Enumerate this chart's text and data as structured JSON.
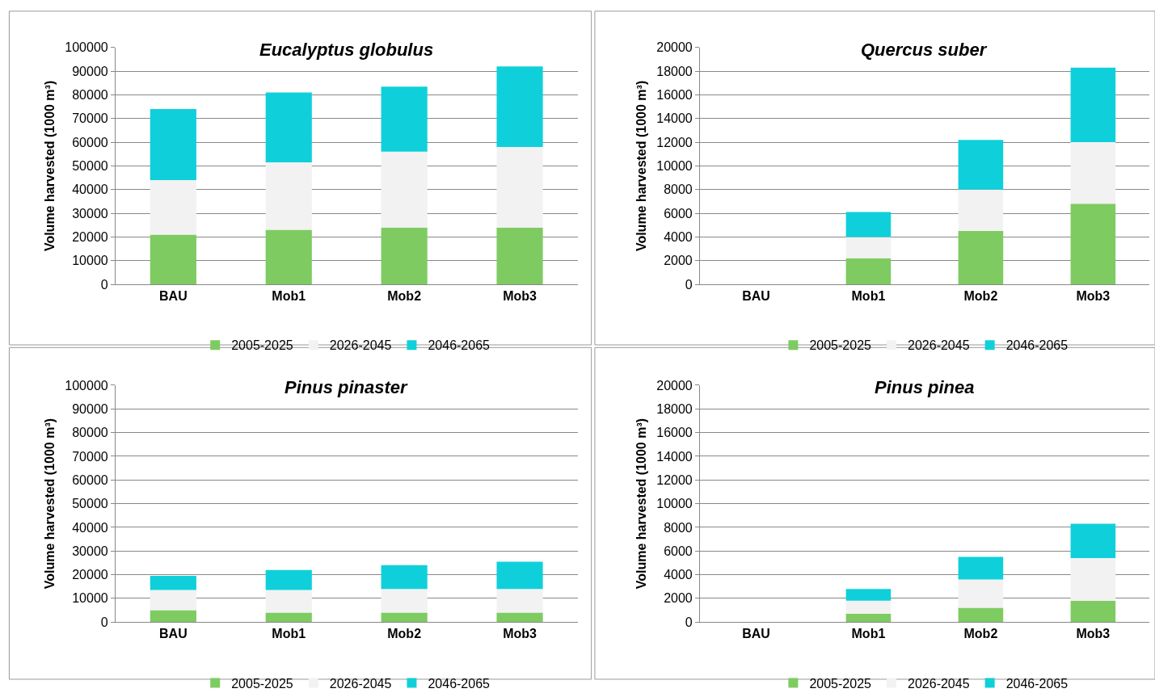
{
  "chart_data": [
    {
      "type": "bar",
      "stacked": true,
      "title": "Eucalyptus globulus",
      "ylabel": "Volume harvested (1000 m³)",
      "categories": [
        "BAU",
        "Mob1",
        "Mob2",
        "Mob3"
      ],
      "series": [
        {
          "name": "2005-2025",
          "color": "#7ecb62",
          "values": [
            21000,
            23000,
            24000,
            24000
          ]
        },
        {
          "name": "2026-2045",
          "color": "#f2f2f2",
          "values": [
            23000,
            28500,
            32000,
            34000
          ]
        },
        {
          "name": "2046-2065",
          "color": "#0fd0da",
          "values": [
            30000,
            29500,
            27500,
            34000
          ]
        }
      ],
      "ylim": [
        0,
        100000
      ],
      "yticks": [
        0,
        10000,
        20000,
        30000,
        40000,
        50000,
        60000,
        70000,
        80000,
        90000,
        100000
      ],
      "grid": "y",
      "legend": "bottom"
    },
    {
      "type": "bar",
      "stacked": true,
      "title": "Quercus suber",
      "ylabel": "Volume harvested (1000 m³)",
      "categories": [
        "BAU",
        "Mob1",
        "Mob2",
        "Mob3"
      ],
      "series": [
        {
          "name": "2005-2025",
          "color": "#7ecb62",
          "values": [
            0,
            2200,
            4500,
            6800
          ]
        },
        {
          "name": "2026-2045",
          "color": "#f2f2f2",
          "values": [
            0,
            1800,
            3500,
            5200
          ]
        },
        {
          "name": "2046-2065",
          "color": "#0fd0da",
          "values": [
            0,
            2100,
            4200,
            6300
          ]
        }
      ],
      "ylim": [
        0,
        20000
      ],
      "yticks": [
        0,
        2000,
        4000,
        6000,
        8000,
        10000,
        12000,
        14000,
        16000,
        18000,
        20000
      ],
      "grid": "y",
      "legend": "bottom"
    },
    {
      "type": "bar",
      "stacked": true,
      "title": "Pinus pinaster",
      "ylabel": "Volume harvested (1000 m³)",
      "categories": [
        "BAU",
        "Mob1",
        "Mob2",
        "Mob3"
      ],
      "series": [
        {
          "name": "2005-2025",
          "color": "#7ecb62",
          "values": [
            5000,
            4000,
            4000,
            4000
          ]
        },
        {
          "name": "2026-2045",
          "color": "#f2f2f2",
          "values": [
            8500,
            9500,
            10000,
            10000
          ]
        },
        {
          "name": "2046-2065",
          "color": "#0fd0da",
          "values": [
            6000,
            8500,
            10000,
            11500
          ]
        }
      ],
      "ylim": [
        0,
        100000
      ],
      "yticks": [
        0,
        10000,
        20000,
        30000,
        40000,
        50000,
        60000,
        70000,
        80000,
        90000,
        100000
      ],
      "grid": "y",
      "legend": "bottom"
    },
    {
      "type": "bar",
      "stacked": true,
      "title": "Pinus pinea",
      "ylabel": "Volume harvested (1000 m³)",
      "categories": [
        "BAU",
        "Mob1",
        "Mob2",
        "Mob3"
      ],
      "series": [
        {
          "name": "2005-2025",
          "color": "#7ecb62",
          "values": [
            0,
            700,
            1200,
            1800
          ]
        },
        {
          "name": "2026-2045",
          "color": "#f2f2f2",
          "values": [
            0,
            1100,
            2400,
            3600
          ]
        },
        {
          "name": "2046-2065",
          "color": "#0fd0da",
          "values": [
            0,
            1000,
            1900,
            2900
          ]
        }
      ],
      "ylim": [
        0,
        20000
      ],
      "yticks": [
        0,
        2000,
        4000,
        6000,
        8000,
        10000,
        12000,
        14000,
        16000,
        18000,
        20000
      ],
      "grid": "y",
      "legend": "bottom"
    }
  ]
}
